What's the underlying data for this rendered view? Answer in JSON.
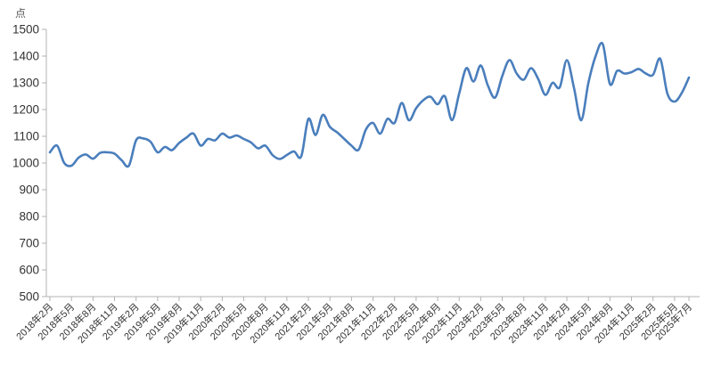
{
  "chart": {
    "unit_label": "点",
    "line_color": "#4a7ebc",
    "axis_color": "#b3b3b3",
    "tick_label_color": "#333333"
  },
  "chart_data": {
    "type": "line",
    "title": "",
    "xlabel": "",
    "ylabel": "点",
    "ylim": [
      500,
      1500
    ],
    "y_tick_step": 100,
    "y_ticks": [
      500,
      600,
      700,
      800,
      900,
      1000,
      1100,
      1200,
      1300,
      1400,
      1500
    ],
    "grid": false,
    "legend": false,
    "smooth": true,
    "x_tick_labels": [
      "2018年2月",
      "2018年5月",
      "2018年8月",
      "2018年11月",
      "2019年2月",
      "2019年5月",
      "2019年8月",
      "2019年11月",
      "2020年2月",
      "2020年5月",
      "2020年8月",
      "2020年11月",
      "2021年2月",
      "2021年5月",
      "2021年8月",
      "2021年11月",
      "2022年2月",
      "2022年5月",
      "2022年8月",
      "2022年11月",
      "2023年2月",
      "2023年5月",
      "2023年8月",
      "2023年11月",
      "2024年2月",
      "2024年5月",
      "2024年8月",
      "2024年11月",
      "2025年2月",
      "2025年5月",
      "2025年7月"
    ],
    "x_start": "2018年2月",
    "x_end": "2025年7月",
    "x_frequency": "monthly",
    "values": [
      1040,
      1065,
      1000,
      990,
      1020,
      1032,
      1016,
      1038,
      1040,
      1035,
      1010,
      990,
      1085,
      1092,
      1080,
      1040,
      1060,
      1048,
      1075,
      1095,
      1110,
      1065,
      1090,
      1085,
      1110,
      1095,
      1103,
      1090,
      1077,
      1055,
      1065,
      1030,
      1015,
      1030,
      1043,
      1025,
      1165,
      1105,
      1180,
      1135,
      1115,
      1090,
      1065,
      1050,
      1125,
      1150,
      1110,
      1165,
      1150,
      1225,
      1160,
      1205,
      1235,
      1248,
      1220,
      1250,
      1160,
      1260,
      1355,
      1305,
      1365,
      1290,
      1245,
      1325,
      1385,
      1335,
      1312,
      1355,
      1315,
      1255,
      1300,
      1283,
      1385,
      1280,
      1160,
      1300,
      1400,
      1445,
      1295,
      1345,
      1335,
      1340,
      1352,
      1335,
      1330,
      1390,
      1260,
      1230,
      1262,
      1320
    ]
  }
}
